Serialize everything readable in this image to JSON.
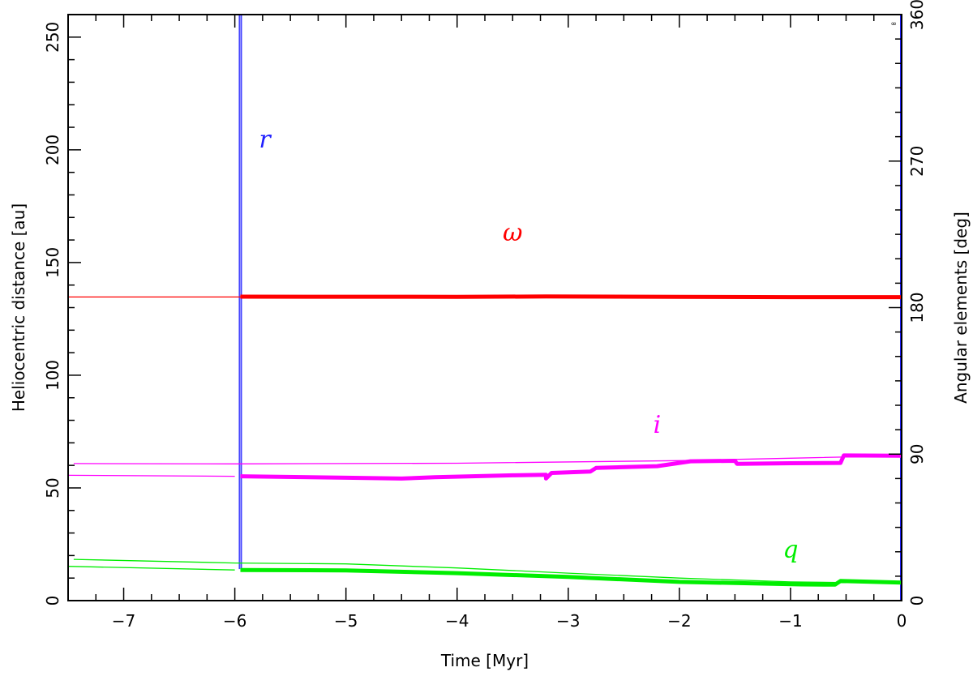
{
  "chart_data": {
    "type": "line",
    "xlabel": "Time [Myr]",
    "ylabel_left": "Heliocentric distance [au]",
    "ylabel_right": "Angular elements [deg]",
    "xlim": [
      -7.5,
      0
    ],
    "ylim_left": [
      0,
      260
    ],
    "ylim_right": [
      0,
      360
    ],
    "x_ticks": [
      -7,
      -6,
      -5,
      -4,
      -3,
      -2,
      -1,
      0
    ],
    "x_tick_labels": [
      "−7",
      "−6",
      "−5",
      "−4",
      "−3",
      "−2",
      "−1",
      "0"
    ],
    "y_left_ticks": [
      0,
      50,
      100,
      150,
      200,
      250
    ],
    "y_left_tick_labels": [
      "0",
      "50",
      "100",
      "150",
      "200",
      "250"
    ],
    "y_right_ticks": [
      0,
      90,
      180,
      270,
      360
    ],
    "y_right_tick_labels": [
      "0",
      "90",
      "180",
      "270",
      "360"
    ],
    "corner_mark": "∞",
    "series": [
      {
        "name": "r",
        "axis": "left",
        "color": "#2020ff",
        "kind": "vertical",
        "points": [
          [
            -5.95,
            14
          ],
          [
            -5.95,
            260
          ]
        ],
        "label_at": [
          -5.73,
          201
        ]
      },
      {
        "name": "ω",
        "axis": "right",
        "color": "#ff0000",
        "width": 1.3,
        "points": [
          [
            -7.5,
            186.5
          ],
          [
            -5.95,
            186.5
          ]
        ],
        "label_at": [
          -3.5,
          221
        ]
      },
      {
        "name": "ω",
        "axis": "right",
        "color": "#ff0000",
        "width": 5,
        "points": [
          [
            -5.95,
            186.7
          ],
          [
            -4,
            186.6
          ],
          [
            -3.2,
            186.8
          ],
          [
            -2,
            186.6
          ],
          [
            -1,
            186.4
          ],
          [
            0,
            186.4
          ]
        ],
        "label_at": [
          -3.5,
          221
        ]
      },
      {
        "name": "i",
        "axis": "right",
        "color": "#ff00ff",
        "width": 1.3,
        "points": [
          [
            -7.45,
            84.2
          ],
          [
            -6,
            84
          ],
          [
            -4,
            84.4
          ],
          [
            -2,
            86
          ],
          [
            -1,
            87.5
          ],
          [
            0,
            89
          ]
        ],
        "label_at": [
          -2.2,
          103
        ]
      },
      {
        "name": "i",
        "axis": "right",
        "color": "#ff00ff",
        "width": 1.3,
        "points": [
          [
            -7.5,
            77
          ],
          [
            -6,
            76.4
          ]
        ],
        "label_at": [
          -2.2,
          103
        ]
      },
      {
        "name": "i",
        "axis": "right",
        "color": "#ff00ff",
        "width": 5,
        "points": [
          [
            -5.95,
            76.4
          ],
          [
            -5,
            75.5
          ],
          [
            -4.5,
            75
          ],
          [
            -4.2,
            75.8
          ],
          [
            -3.5,
            77
          ],
          [
            -3.2,
            77.3
          ],
          [
            -3.2,
            75
          ],
          [
            -3.15,
            78.4
          ],
          [
            -2.8,
            79.3
          ],
          [
            -2.75,
            81.5
          ],
          [
            -2.2,
            82.6
          ],
          [
            -1.9,
            85.6
          ],
          [
            -1.5,
            85.9
          ],
          [
            -1.48,
            84
          ],
          [
            -1,
            84.4
          ],
          [
            -0.55,
            84.6
          ],
          [
            -0.52,
            89.2
          ],
          [
            0,
            89
          ]
        ],
        "label_at": [
          -2.2,
          103
        ]
      },
      {
        "name": "q",
        "axis": "left",
        "color": "#00ee00",
        "width": 1.3,
        "points": [
          [
            -7.45,
            18.3
          ],
          [
            -6,
            16.7
          ],
          [
            -5,
            16.3
          ],
          [
            -4,
            14.5
          ],
          [
            -3,
            12.2
          ],
          [
            -2,
            10
          ],
          [
            -1,
            8.3
          ],
          [
            -0.5,
            8
          ]
        ],
        "label_at": [
          -1.0,
          19
        ]
      },
      {
        "name": "q",
        "axis": "left",
        "color": "#00ee00",
        "width": 1.3,
        "points": [
          [
            -7.5,
            15.2
          ],
          [
            -6,
            13.6
          ]
        ],
        "label_at": [
          -1.0,
          19
        ]
      },
      {
        "name": "q",
        "axis": "left",
        "color": "#00ee00",
        "width": 5,
        "points": [
          [
            -5.95,
            13.6
          ],
          [
            -5,
            13.4
          ],
          [
            -4,
            12.2
          ],
          [
            -3,
            10.5
          ],
          [
            -2,
            8.3
          ],
          [
            -1.2,
            7.5
          ],
          [
            -0.9,
            7.2
          ],
          [
            -0.6,
            7.1
          ],
          [
            -0.55,
            8.7
          ],
          [
            0,
            8
          ]
        ],
        "label_at": [
          -1.0,
          19
        ]
      }
    ]
  }
}
